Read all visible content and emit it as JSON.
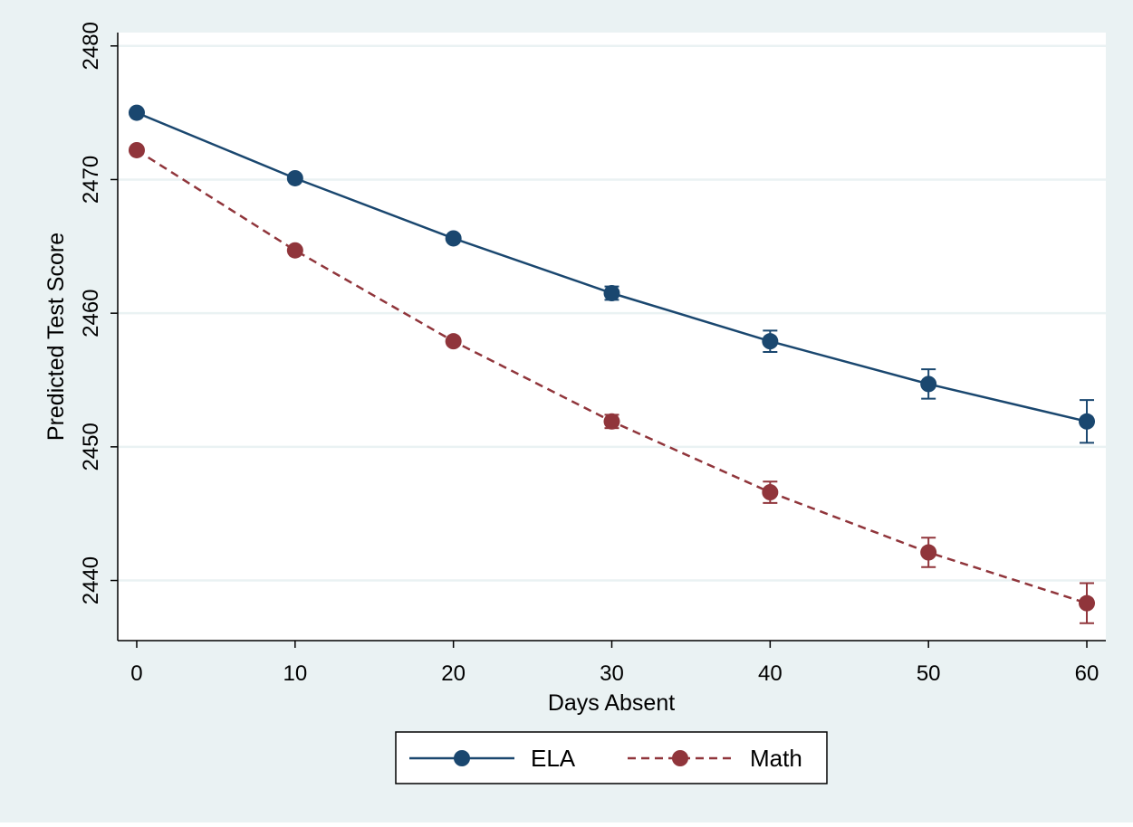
{
  "chart_data": {
    "type": "line",
    "title": "",
    "xlabel": "Days Absent",
    "ylabel": "Predicted Test Score",
    "x": [
      0,
      10,
      20,
      30,
      40,
      50,
      60
    ],
    "xlim": [
      -1.2,
      61.2
    ],
    "ylim": [
      2435.5,
      2481
    ],
    "xticks": [
      "0",
      "10",
      "20",
      "30",
      "40",
      "50",
      "60"
    ],
    "yticks": [
      "2440",
      "2450",
      "2460",
      "2470",
      "2480"
    ],
    "grid": "horizontal",
    "legend_position": "bottom",
    "series": [
      {
        "name": "ELA",
        "style": "solid",
        "color": "#1a476f",
        "values": [
          2475.0,
          2470.1,
          2465.6,
          2461.5,
          2457.9,
          2454.7,
          2451.9
        ],
        "ci_low": [
          2474.8,
          2469.9,
          2465.4,
          2461.0,
          2457.1,
          2453.6,
          2450.3
        ],
        "ci_high": [
          2475.2,
          2470.3,
          2465.8,
          2462.0,
          2458.7,
          2455.8,
          2453.5
        ]
      },
      {
        "name": "Math",
        "style": "dashed",
        "color": "#90353b",
        "values": [
          2472.2,
          2464.7,
          2457.9,
          2451.9,
          2446.6,
          2442.1,
          2438.3
        ],
        "ci_low": [
          2472.0,
          2464.5,
          2457.7,
          2451.4,
          2445.8,
          2441.0,
          2436.8
        ],
        "ci_high": [
          2472.4,
          2464.9,
          2458.1,
          2452.4,
          2447.4,
          2443.2,
          2439.8
        ]
      }
    ]
  },
  "colors": {
    "outer_background": "#eaf2f3",
    "plot_background": "#ffffff",
    "gridline": "#eaf2f3"
  }
}
